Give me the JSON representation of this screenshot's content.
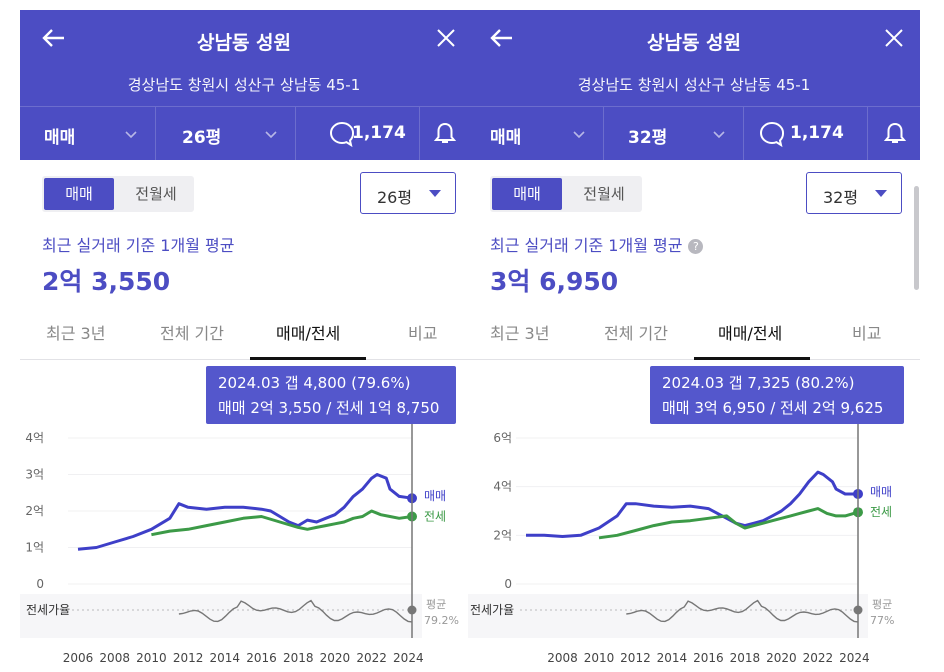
{
  "colors": {
    "brand": "#4c4dc3",
    "sale": "#3e3fc8",
    "jeonse": "#3c9a47",
    "ratio": "#777777"
  },
  "panels": [
    {
      "header": {
        "title": "상남동 성원",
        "address": "경상남도 창원시 성산구 상남동 45-1",
        "deal_type": "매매",
        "size": "26평",
        "comment_count": "1,174"
      },
      "segment": {
        "sale": "매매",
        "lease": "전월세"
      },
      "size_select": "26평",
      "subtitle": "최근 실거래 기준 1개월 평균",
      "price": "2억 3,550",
      "tabs": [
        "최근 3년",
        "전체 기간",
        "매매/전세",
        "비교"
      ],
      "tooltip": {
        "line1": "2024.03  갭 4,800 (79.6%)",
        "line2": "매매 2억 3,550 / 전세 1억 8,750"
      },
      "chart_data": {
        "type": "line",
        "y_ticks": [
          "4억",
          "3억",
          "2억",
          "1억",
          "0"
        ],
        "ylim": [
          0,
          4
        ],
        "x_ticks": [
          "2006",
          "2008",
          "2010",
          "2012",
          "2014",
          "2016",
          "2018",
          "2020",
          "2022",
          "2024"
        ],
        "legend": {
          "sale": "매매",
          "jeonse": "전세"
        },
        "ratio_label": "전세가율",
        "ratio_avg_label": "평균",
        "ratio_avg_value": "79.2%",
        "series": [
          {
            "name": "매매",
            "x": [
              2006,
              2007,
              2008,
              2009,
              2010,
              2011,
              2011.5,
              2012,
              2013,
              2014,
              2015,
              2016,
              2016.5,
              2017,
              2017.5,
              2018,
              2018.5,
              2019,
              2019.5,
              2020,
              2020.5,
              2021,
              2021.5,
              2022,
              2022.3,
              2022.8,
              2023,
              2023.5,
              2024.2
            ],
            "values": [
              0.95,
              1.0,
              1.15,
              1.3,
              1.5,
              1.8,
              2.2,
              2.1,
              2.05,
              2.1,
              2.1,
              2.05,
              2.0,
              1.85,
              1.7,
              1.6,
              1.75,
              1.7,
              1.8,
              1.9,
              2.1,
              2.4,
              2.6,
              2.9,
              3.0,
              2.9,
              2.6,
              2.4,
              2.35
            ]
          },
          {
            "name": "전세",
            "x": [
              2010,
              2011,
              2012,
              2013,
              2014,
              2015,
              2016,
              2017,
              2018,
              2018.5,
              2019,
              2019.5,
              2020,
              2020.5,
              2021,
              2021.5,
              2022,
              2022.5,
              2023,
              2023.5,
              2024.2
            ],
            "values": [
              1.35,
              1.45,
              1.5,
              1.6,
              1.7,
              1.8,
              1.85,
              1.7,
              1.55,
              1.5,
              1.55,
              1.6,
              1.65,
              1.7,
              1.8,
              1.85,
              2.0,
              1.9,
              1.85,
              1.8,
              1.85
            ]
          }
        ]
      }
    },
    {
      "header": {
        "title": "상남동 성원",
        "address": "경상남도 창원시 성산구 상남동 45-1",
        "deal_type": "매매",
        "size": "32평",
        "comment_count": "1,174"
      },
      "segment": {
        "sale": "매매",
        "lease": "전월세"
      },
      "size_select": "32평",
      "subtitle": "최근 실거래 기준 1개월 평균",
      "price": "3억 6,950",
      "tabs": [
        "최근 3년",
        "전체 기간",
        "매매/전세",
        "비교"
      ],
      "tooltip": {
        "line1": "2024.03  갭 7,325 (80.2%)",
        "line2": "매매 3억 6,950 / 전세 2억 9,625"
      },
      "chart_data": {
        "type": "line",
        "y_ticks": [
          "6억",
          "4억",
          "2억",
          "0"
        ],
        "ylim": [
          0,
          6
        ],
        "x_ticks": [
          "2008",
          "2010",
          "2012",
          "2014",
          "2016",
          "2018",
          "2020",
          "2022",
          "2024"
        ],
        "legend": {
          "sale": "매매",
          "jeonse": "전세"
        },
        "ratio_label": "전세가율",
        "ratio_avg_label": "평균",
        "ratio_avg_value": "77%",
        "series": [
          {
            "name": "매매",
            "x": [
              2006,
              2007,
              2008,
              2009,
              2010,
              2011,
              2011.5,
              2012,
              2013,
              2014,
              2015,
              2016,
              2016.5,
              2017,
              2017.5,
              2018,
              2018.5,
              2019,
              2019.5,
              2020,
              2020.5,
              2021,
              2021.5,
              2022,
              2022.3,
              2022.8,
              2023,
              2023.5,
              2024.2
            ],
            "values": [
              2.0,
              2.0,
              1.95,
              2.0,
              2.3,
              2.8,
              3.3,
              3.3,
              3.2,
              3.15,
              3.2,
              3.1,
              2.9,
              2.7,
              2.5,
              2.4,
              2.5,
              2.6,
              2.8,
              3.0,
              3.3,
              3.7,
              4.2,
              4.6,
              4.5,
              4.2,
              3.9,
              3.7,
              3.7
            ]
          },
          {
            "name": "전세",
            "x": [
              2010,
              2011,
              2012,
              2013,
              2014,
              2015,
              2016,
              2017,
              2017.5,
              2018,
              2018.5,
              2019,
              2019.5,
              2020,
              2020.5,
              2021,
              2021.5,
              2022,
              2022.5,
              2023,
              2023.5,
              2024.2
            ],
            "values": [
              1.9,
              2.0,
              2.2,
              2.4,
              2.55,
              2.6,
              2.7,
              2.8,
              2.5,
              2.3,
              2.4,
              2.5,
              2.6,
              2.7,
              2.8,
              2.9,
              3.0,
              3.1,
              2.9,
              2.8,
              2.8,
              2.95
            ]
          }
        ]
      }
    }
  ]
}
